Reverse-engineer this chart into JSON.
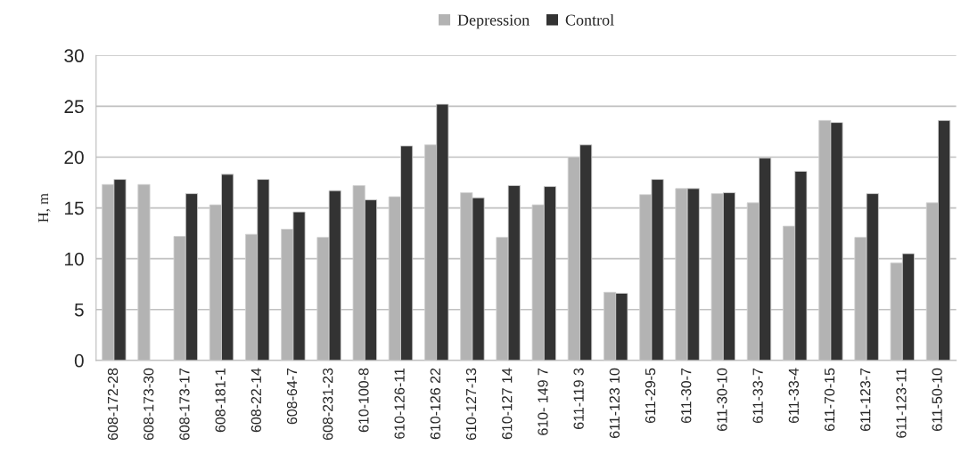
{
  "chart_data": {
    "type": "bar",
    "ylabel": "H, m",
    "categories": [
      "608-172-28",
      "608-173-30",
      "608-173-17",
      "608-181-1",
      "608-22-14",
      "608-64-7",
      "608-231-23",
      "610-100-8",
      "610-126-11",
      "610-126 22",
      "610-127-13",
      "610-127 14",
      "610- 149 7",
      "611-119 3",
      "611-123 10",
      "611-29-5",
      "611-30-7",
      "611-30-10",
      "611-33-7",
      "611-33-4",
      "611-70-15",
      "611-123-7",
      "611-123-11",
      "611-50-10"
    ],
    "series": [
      {
        "name": "Depression",
        "color": "#b3b3b3",
        "values": [
          17.3,
          17.3,
          12.2,
          15.3,
          12.4,
          12.9,
          12.1,
          17.2,
          16.1,
          21.2,
          16.5,
          12.1,
          15.3,
          20.0,
          6.7,
          16.3,
          16.9,
          16.4,
          15.5,
          13.2,
          23.6,
          12.1,
          9.6,
          15.5
        ]
      },
      {
        "name": "Control",
        "color": "#333333",
        "values": [
          17.8,
          null,
          16.4,
          18.3,
          17.8,
          14.6,
          16.7,
          15.8,
          21.1,
          25.2,
          16.0,
          17.2,
          17.1,
          21.2,
          6.6,
          17.8,
          16.9,
          16.5,
          19.9,
          18.6,
          23.4,
          16.4,
          10.5,
          23.6
        ]
      }
    ],
    "ylim": [
      0,
      30
    ],
    "yticks": [
      0,
      5,
      10,
      15,
      20,
      25,
      30
    ],
    "grid": "y",
    "legend": "top"
  }
}
